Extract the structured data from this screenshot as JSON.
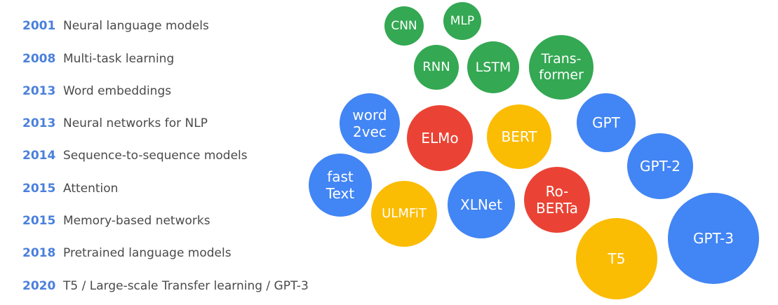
{
  "colors": {
    "year": "#4a80dc",
    "label": "#4a4a4a",
    "green": "#34a853",
    "blue": "#4285f4",
    "red": "#ea4335",
    "yellow": "#fbbc04"
  },
  "timeline": [
    {
      "year": "2001",
      "label": "Neural language models"
    },
    {
      "year": "2008",
      "label": "Multi-task learning"
    },
    {
      "year": "2013",
      "label": "Word embeddings"
    },
    {
      "year": "2013",
      "label": "Neural networks for NLP"
    },
    {
      "year": "2014",
      "label": "Sequence-to-sequence models"
    },
    {
      "year": "2015",
      "label": "Attention"
    },
    {
      "year": "2015",
      "label": "Memory-based networks"
    },
    {
      "year": "2018",
      "label": "Pretrained language models"
    },
    {
      "year": "2020",
      "label": "T5 / Large-scale Transfer learning / GPT-3"
    }
  ],
  "bubbles": [
    {
      "id": "cnn",
      "lines": [
        "CNN"
      ],
      "color": "green"
    },
    {
      "id": "mlp",
      "lines": [
        "MLP"
      ],
      "color": "green"
    },
    {
      "id": "rnn",
      "lines": [
        "RNN"
      ],
      "color": "green"
    },
    {
      "id": "lstm",
      "lines": [
        "LSTM"
      ],
      "color": "green"
    },
    {
      "id": "transformer",
      "lines": [
        "Trans-",
        "former"
      ],
      "color": "green"
    },
    {
      "id": "word2vec",
      "lines": [
        "word",
        "2vec"
      ],
      "color": "blue"
    },
    {
      "id": "elmo",
      "lines": [
        "ELMo"
      ],
      "color": "red"
    },
    {
      "id": "bert",
      "lines": [
        "BERT"
      ],
      "color": "yellow"
    },
    {
      "id": "gpt",
      "lines": [
        "GPT"
      ],
      "color": "blue"
    },
    {
      "id": "gpt2",
      "lines": [
        "GPT-2"
      ],
      "color": "blue"
    },
    {
      "id": "fasttext",
      "lines": [
        "fast",
        "Text"
      ],
      "color": "blue"
    },
    {
      "id": "ulmfit",
      "lines": [
        "ULMFiT"
      ],
      "color": "yellow"
    },
    {
      "id": "xlnet",
      "lines": [
        "XLNet"
      ],
      "color": "blue"
    },
    {
      "id": "roberta",
      "lines": [
        "Ro-",
        "BERTa"
      ],
      "color": "red"
    },
    {
      "id": "gpt3",
      "lines": [
        "GPT-3"
      ],
      "color": "blue"
    },
    {
      "id": "t5",
      "lines": [
        "T5"
      ],
      "color": "yellow"
    }
  ]
}
